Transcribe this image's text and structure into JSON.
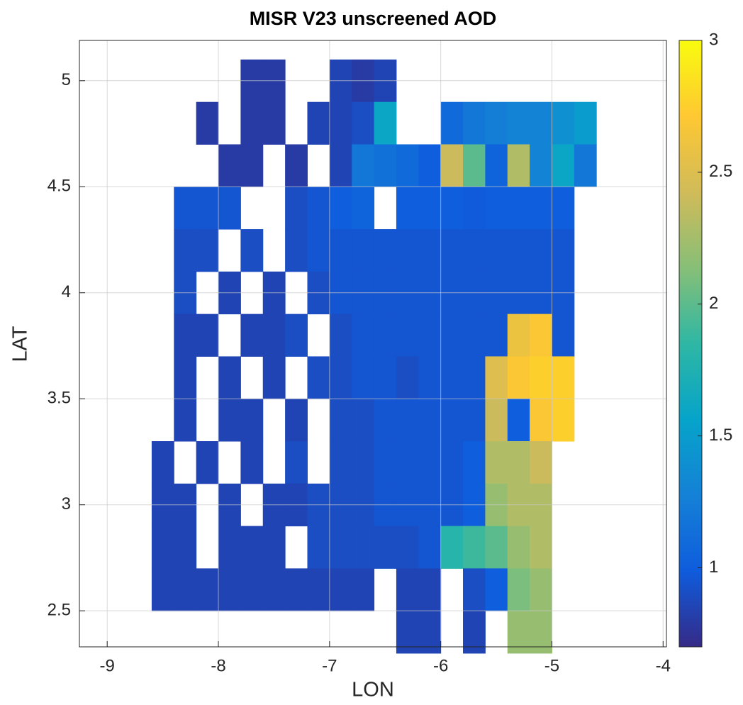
{
  "chart_data": {
    "type": "heatmap",
    "title": "MISR V23 unscreened AOD",
    "xlabel": "LON",
    "ylabel": "LAT",
    "xlim": [
      -9.25,
      -3.97
    ],
    "ylim": [
      2.33,
      5.19
    ],
    "xticks": [
      -9,
      -8,
      -7,
      -6,
      -5,
      -4
    ],
    "yticks": [
      2.5,
      3,
      3.5,
      4,
      4.5,
      5
    ],
    "grid": true,
    "x": [
      -8.5,
      -8.3,
      -8.1,
      -7.9,
      -7.7,
      -7.5,
      -7.3,
      -7.1,
      -6.9,
      -6.7,
      -6.5,
      -6.3,
      -6.1,
      -5.9,
      -5.7,
      -5.5,
      -5.3,
      -5.1,
      -4.9,
      -4.7
    ],
    "y": [
      5.0,
      4.8,
      4.6,
      4.4,
      4.2,
      4.0,
      3.8,
      3.6,
      3.4,
      3.2,
      3.0,
      2.8,
      2.6,
      2.4
    ],
    "z": [
      [
        null,
        null,
        null,
        null,
        0.8,
        0.8,
        null,
        null,
        0.85,
        0.8,
        0.85,
        null,
        null,
        null,
        null,
        null,
        null,
        null,
        null,
        null
      ],
      [
        null,
        null,
        0.8,
        null,
        0.8,
        0.8,
        null,
        0.85,
        0.85,
        0.9,
        1.6,
        null,
        null,
        1.1,
        1.2,
        1.25,
        1.3,
        1.3,
        1.4,
        1.5
      ],
      [
        null,
        null,
        null,
        0.8,
        0.8,
        null,
        0.8,
        null,
        0.85,
        1.2,
        1.15,
        1.1,
        1.0,
        2.4,
        2.0,
        1.05,
        2.3,
        1.3,
        1.6,
        1.2
      ],
      [
        null,
        0.95,
        0.95,
        0.95,
        null,
        null,
        0.9,
        0.95,
        1.0,
        1.05,
        null,
        1.0,
        1.0,
        1.0,
        0.98,
        1.0,
        1.0,
        1.0,
        1.0,
        null
      ],
      [
        null,
        0.9,
        0.9,
        null,
        0.9,
        null,
        0.9,
        0.95,
        0.95,
        0.95,
        0.95,
        0.95,
        0.95,
        0.95,
        0.95,
        0.95,
        0.95,
        0.95,
        0.95,
        null
      ],
      [
        null,
        0.9,
        null,
        0.85,
        null,
        0.85,
        null,
        0.9,
        0.95,
        0.95,
        0.95,
        0.95,
        0.95,
        0.95,
        0.95,
        0.95,
        0.95,
        0.95,
        0.95,
        null
      ],
      [
        null,
        0.85,
        0.85,
        null,
        0.85,
        0.85,
        0.9,
        null,
        0.9,
        0.95,
        0.95,
        0.95,
        0.95,
        0.95,
        0.95,
        0.95,
        2.6,
        2.7,
        0.95,
        null
      ],
      [
        null,
        0.85,
        null,
        0.85,
        null,
        0.85,
        null,
        0.9,
        0.9,
        0.95,
        0.95,
        0.9,
        0.95,
        0.95,
        0.95,
        2.5,
        2.7,
        2.75,
        2.75,
        null
      ],
      [
        null,
        0.85,
        null,
        0.85,
        0.85,
        null,
        0.85,
        null,
        0.9,
        0.9,
        0.95,
        0.95,
        0.95,
        0.95,
        0.95,
        2.4,
        1.0,
        2.7,
        2.75,
        null
      ],
      [
        0.85,
        null,
        0.85,
        null,
        0.85,
        null,
        0.9,
        null,
        0.9,
        0.9,
        0.95,
        0.95,
        0.95,
        0.95,
        1.0,
        2.3,
        2.3,
        2.4,
        null,
        null
      ],
      [
        0.85,
        0.85,
        null,
        0.85,
        null,
        0.85,
        0.85,
        0.9,
        0.9,
        0.9,
        0.95,
        0.95,
        0.95,
        0.95,
        1.0,
        2.2,
        2.3,
        2.3,
        null,
        null
      ],
      [
        0.85,
        0.85,
        null,
        0.85,
        0.85,
        0.85,
        null,
        0.9,
        0.9,
        0.9,
        0.9,
        0.9,
        0.95,
        1.8,
        1.9,
        2.0,
        2.2,
        2.3,
        null,
        null
      ],
      [
        0.85,
        0.85,
        0.85,
        0.85,
        0.85,
        0.85,
        0.85,
        0.85,
        0.85,
        0.85,
        null,
        0.85,
        0.85,
        null,
        0.9,
        1.0,
        2.1,
        2.2,
        null,
        null
      ],
      [
        null,
        null,
        null,
        null,
        null,
        null,
        null,
        null,
        null,
        null,
        null,
        0.85,
        0.85,
        null,
        0.85,
        null,
        2.2,
        2.2,
        null,
        null
      ]
    ],
    "colormap": [
      "#352a87",
      "#0f5cdd",
      "#1481d6",
      "#06a4ca",
      "#2eb7a4",
      "#87bf77",
      "#d1bb59",
      "#fec832",
      "#f9fb0e"
    ],
    "clim": [
      0.7,
      3
    ],
    "cticks": [
      1,
      1.5,
      2,
      2.5,
      3
    ]
  }
}
